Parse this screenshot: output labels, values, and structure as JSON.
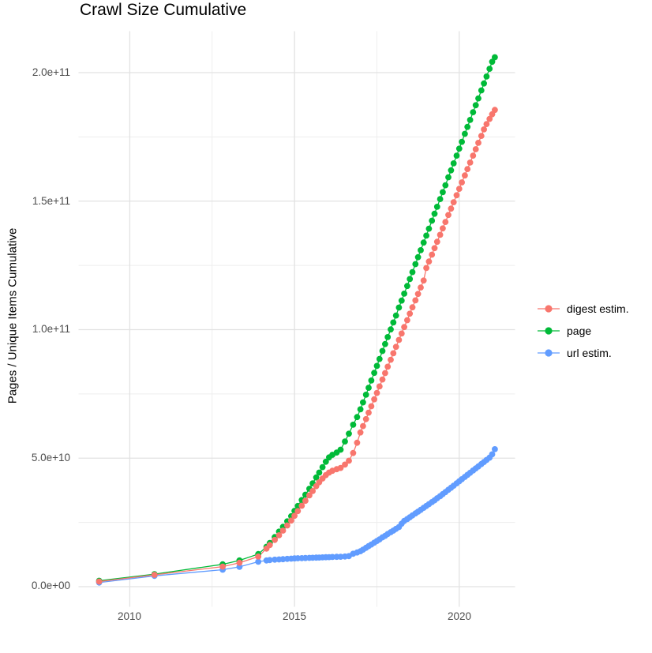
{
  "title": "Crawl Size Cumulative",
  "y_axis_title": "Pages / Unique Items Cumulative",
  "x_ticks": [
    "2010",
    "2015",
    "2020"
  ],
  "y_ticks": [
    "0.0e+00",
    "5.0e+10",
    "1.0e+11",
    "1.5e+11",
    "2.0e+11"
  ],
  "legend": {
    "items": [
      {
        "label": "digest estim.",
        "color": "#F8766D"
      },
      {
        "label": "page",
        "color": "#00BA38"
      },
      {
        "label": "url estim.",
        "color": "#619CFF"
      }
    ]
  },
  "chart_data": {
    "type": "line",
    "title": "Crawl Size Cumulative",
    "xlabel": "",
    "ylabel": "Pages / Unique Items Cumulative",
    "x_unit": "year",
    "y_unit": "pages / unique items (cumulative count)",
    "xlim": [
      2008.4,
      2021.7
    ],
    "ylim": [
      -8000000000.0,
      216000000000.0
    ],
    "x_major_ticks": [
      2010,
      2015,
      2020
    ],
    "x_minor_ticks": [
      2012.5,
      2017.5
    ],
    "y_major_ticks": [
      0,
      50000000000.0,
      100000000000.0,
      150000000000.0,
      200000000000.0
    ],
    "y_minor_ticks": [
      25000000000.0,
      75000000000.0,
      125000000000.0,
      175000000000.0
    ],
    "grid": true,
    "legend_position": "right",
    "marker": "point",
    "x": [
      2009.07,
      2010.75,
      2012.82,
      2013.33,
      2013.9,
      2014.15,
      2014.25,
      2014.4,
      2014.53,
      2014.65,
      2014.78,
      2014.9,
      2015.0,
      2015.1,
      2015.22,
      2015.33,
      2015.45,
      2015.55,
      2015.66,
      2015.75,
      2015.85,
      2015.95,
      2016.05,
      2016.15,
      2016.28,
      2016.4,
      2016.53,
      2016.65,
      2016.78,
      2016.9,
      2017.0,
      2017.08,
      2017.17,
      2017.25,
      2017.33,
      2017.42,
      2017.5,
      2017.58,
      2017.67,
      2017.75,
      2017.83,
      2017.92,
      2018.0,
      2018.08,
      2018.17,
      2018.25,
      2018.33,
      2018.42,
      2018.5,
      2018.58,
      2018.67,
      2018.75,
      2018.83,
      2018.92,
      2019.0,
      2019.08,
      2019.17,
      2019.25,
      2019.33,
      2019.42,
      2019.5,
      2019.58,
      2019.67,
      2019.75,
      2019.83,
      2019.92,
      2020.0,
      2020.08,
      2020.17,
      2020.25,
      2020.33,
      2020.42,
      2020.5,
      2020.58,
      2020.67,
      2020.75,
      2020.83,
      2020.92,
      2021.0,
      2021.08
    ],
    "series": [
      {
        "name": "digest estim.",
        "color": "#F8766D",
        "values": [
          2000000000.0,
          4600000000.0,
          7800000000.0,
          9300000000.0,
          11700000000.0,
          14800000000.0,
          16200000000.0,
          18200000000.0,
          20000000000.0,
          21800000000.0,
          23800000000.0,
          25700000000.0,
          27600000000.0,
          29400000000.0,
          31500000000.0,
          33400000000.0,
          35500000000.0,
          37200000000.0,
          39100000000.0,
          40600000000.0,
          42100000000.0,
          43400000000.0,
          44400000000.0,
          45100000000.0,
          45700000000.0,
          46200000000.0,
          47500000000.0,
          49000000000.0,
          52000000000.0,
          56000000000.0,
          60000000000.0,
          62500000000.0,
          65200000000.0,
          67700000000.0,
          70200000000.0,
          72900000000.0,
          75400000000.0,
          77900000000.0,
          80600000000.0,
          83100000000.0,
          85600000000.0,
          88300000000.0,
          90800000000.0,
          93300000000.0,
          96000000000.0,
          98500000000.0,
          101000000000.0,
          103700000000.0,
          106200000000.0,
          108700000000.0,
          111400000000.0,
          113900000000.0,
          116400000000.0,
          119100000000.0,
          124000000000.0,
          126500000000.0,
          129200000000.0,
          131700000000.0,
          134200000000.0,
          136900000000.0,
          139400000000.0,
          141900000000.0,
          144600000000.0,
          147100000000.0,
          149600000000.0,
          152300000000.0,
          154800000000.0,
          157300000000.0,
          160000000000.0,
          162500000000.0,
          165000000000.0,
          167700000000.0,
          170200000000.0,
          172700000000.0,
          175400000000.0,
          177900000000.0,
          180000000000.0,
          182000000000.0,
          183800000000.0,
          185500000000.0
        ]
      },
      {
        "name": "page",
        "color": "#00BA38",
        "values": [
          2300000000.0,
          4900000000.0,
          8700000000.0,
          10200000000.0,
          12700000000.0,
          15500000000.0,
          17000000000.0,
          19300000000.0,
          21400000000.0,
          23300000000.0,
          25400000000.0,
          27400000000.0,
          29500000000.0,
          31400000000.0,
          33700000000.0,
          35800000000.0,
          38100000000.0,
          40200000000.0,
          42500000000.0,
          44400000000.0,
          46500000000.0,
          48600000000.0,
          50300000000.0,
          51300000000.0,
          52200000000.0,
          53300000000.0,
          56500000000.0,
          59500000000.0,
          63000000000.0,
          66000000000.0,
          69000000000.0,
          71700000000.0,
          74700000000.0,
          77400000000.0,
          80200000000.0,
          83200000000.0,
          85900000000.0,
          88600000000.0,
          91700000000.0,
          94400000000.0,
          97100000000.0,
          100100000000.0,
          102800000000.0,
          105500000000.0,
          108600000000.0,
          111300000000.0,
          114000000000.0,
          117000000000.0,
          119700000000.0,
          122400000000.0,
          125500000000.0,
          128200000000.0,
          130900000000.0,
          133900000000.0,
          136600000000.0,
          139300000000.0,
          142400000000.0,
          145100000000.0,
          147800000000.0,
          150800000000.0,
          153500000000.0,
          156200000000.0,
          159300000000.0,
          162000000000.0,
          164700000000.0,
          167700000000.0,
          170400000000.0,
          173100000000.0,
          176200000000.0,
          178900000000.0,
          181600000000.0,
          184600000000.0,
          187300000000.0,
          190000000000.0,
          193100000000.0,
          195800000000.0,
          198500000000.0,
          201500000000.0,
          204200000000.0,
          206000000000.0
        ]
      },
      {
        "name": "url estim.",
        "color": "#619CFF",
        "values": [
          1600000000.0,
          4200000000.0,
          6600000000.0,
          7700000000.0,
          9700000000.0,
          10200000000.0,
          10350000000.0,
          10500000000.0,
          10600000000.0,
          10700000000.0,
          10800000000.0,
          10900000000.0,
          11000000000.0,
          11050000000.0,
          11100000000.0,
          11150000000.0,
          11200000000.0,
          11250000000.0,
          11300000000.0,
          11350000000.0,
          11400000000.0,
          11450000000.0,
          11500000000.0,
          11550000000.0,
          11600000000.0,
          11650000000.0,
          11750000000.0,
          11900000000.0,
          12800000000.0,
          13300000000.0,
          13800000000.0,
          14400000000.0,
          15100000000.0,
          15800000000.0,
          16400000000.0,
          17100000000.0,
          17800000000.0,
          18400000000.0,
          19200000000.0,
          19800000000.0,
          20500000000.0,
          21200000000.0,
          21800000000.0,
          22500000000.0,
          23200000000.0,
          24500000000.0,
          25600000000.0,
          26300000000.0,
          27000000000.0,
          27700000000.0,
          28500000000.0,
          29200000000.0,
          29900000000.0,
          30700000000.0,
          31400000000.0,
          32100000000.0,
          32900000000.0,
          33600000000.0,
          34400000000.0,
          35200000000.0,
          36000000000.0,
          36800000000.0,
          37700000000.0,
          38500000000.0,
          39300000000.0,
          40200000000.0,
          41000000000.0,
          41800000000.0,
          42700000000.0,
          43500000000.0,
          44300000000.0,
          45200000000.0,
          46000000000.0,
          46800000000.0,
          47700000000.0,
          48500000000.0,
          49300000000.0,
          50200000000.0,
          51500000000.0,
          53500000000.0
        ]
      }
    ]
  },
  "style": {
    "background": "#FFFFFF",
    "grid_major_color": "#E2E2E2",
    "grid_minor_color": "#EDEDED",
    "tick_label_color": "#4D4D4D",
    "text_color": "#000000"
  }
}
